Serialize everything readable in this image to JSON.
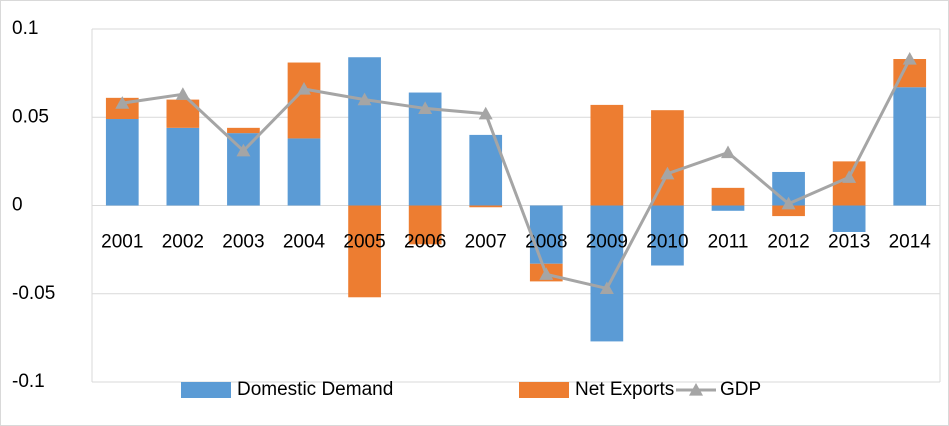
{
  "chart_data": {
    "type": "bar",
    "stacked": true,
    "categories": [
      "2001",
      "2002",
      "2003",
      "2004",
      "2005",
      "2006",
      "2007",
      "2008",
      "2009",
      "2010",
      "2011",
      "2012",
      "2013",
      "2014"
    ],
    "series": [
      {
        "name": "Domestic Demand",
        "type": "bar",
        "color": "#5b9bd5",
        "values": [
          0.049,
          0.044,
          0.041,
          0.038,
          0.084,
          0.064,
          0.04,
          -0.033,
          -0.077,
          -0.034,
          -0.003,
          0.019,
          -0.015,
          0.067
        ]
      },
      {
        "name": "Net Exports",
        "type": "bar",
        "color": "#ed7d31",
        "values": [
          0.012,
          0.016,
          0.003,
          0.043,
          -0.052,
          -0.022,
          -0.001,
          -0.01,
          0.057,
          0.054,
          0.01,
          -0.006,
          0.025,
          0.016
        ]
      },
      {
        "name": "GDP",
        "type": "line",
        "color": "#a5a5a5",
        "values": [
          0.058,
          0.063,
          0.031,
          0.066,
          0.06,
          0.055,
          0.052,
          -0.039,
          -0.047,
          0.018,
          0.03,
          0.001,
          0.016,
          0.083
        ]
      }
    ],
    "ylim": [
      -0.1,
      0.1
    ],
    "yticks": [
      0.1,
      0.05,
      0,
      -0.05,
      -0.1
    ],
    "grid": true,
    "legend": "bottom"
  }
}
